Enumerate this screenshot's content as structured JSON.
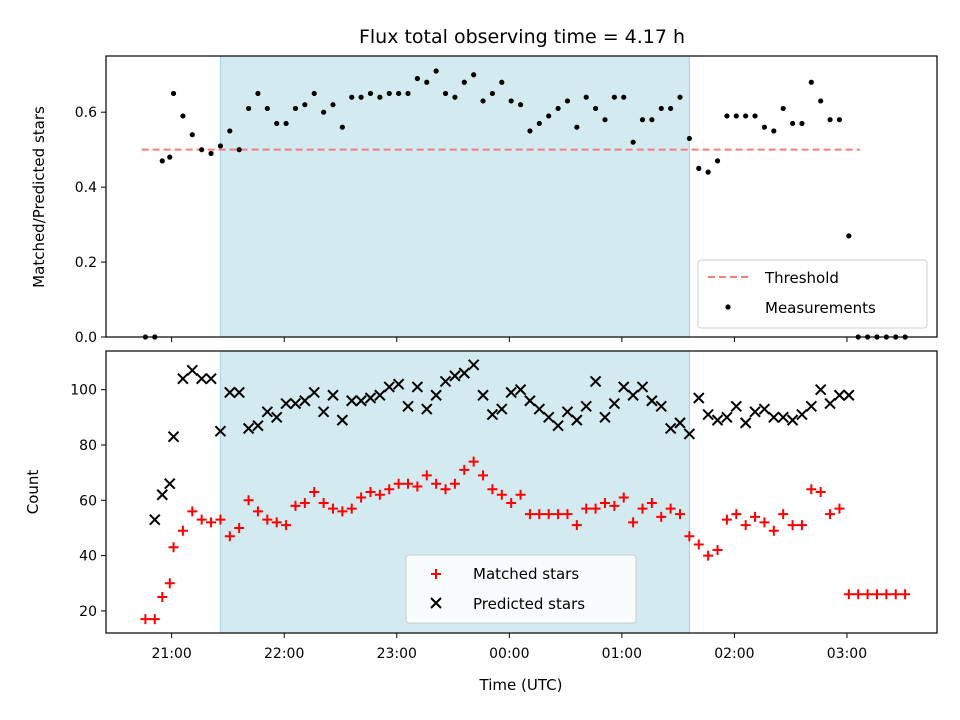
{
  "chart_data": [
    {
      "type": "scatter",
      "title": "Flux total observing time = 4.17 h",
      "xlabel": "",
      "ylabel": "Matched/Predicted stars",
      "xlim": [
        "20:25",
        "03:48"
      ],
      "ylim": [
        0,
        0.75
      ],
      "yticks": [
        0.0,
        0.2,
        0.4,
        0.6
      ],
      "ytick_labels": [
        "0.0",
        "0.2",
        "0.4",
        "0.6"
      ],
      "shaded_span": [
        "21:26",
        "01:36"
      ],
      "shaded_color": "#d3eaf1",
      "threshold": {
        "name": "Threshold",
        "y": 0.5,
        "x": [
          "20:44",
          "03:07"
        ],
        "color": "#f08080",
        "style": "dashed"
      },
      "legend": {
        "position": "lower right",
        "entries": [
          "Threshold",
          "Measurements"
        ]
      },
      "series": [
        {
          "name": "Measurements",
          "marker": "dot",
          "color": "#000000",
          "x": [
            "20:46",
            "20:51",
            "20:55",
            "20:59",
            "21:01",
            "21:06",
            "21:11",
            "21:16",
            "21:21",
            "21:26",
            "21:31",
            "21:36",
            "21:41",
            "21:46",
            "21:51",
            "21:56",
            "22:01",
            "22:06",
            "22:11",
            "22:16",
            "22:21",
            "22:26",
            "22:31",
            "22:36",
            "22:41",
            "22:46",
            "22:51",
            "22:56",
            "23:01",
            "23:06",
            "23:11",
            "23:16",
            "23:21",
            "23:26",
            "23:31",
            "23:36",
            "23:41",
            "23:46",
            "23:51",
            "23:56",
            "00:01",
            "00:06",
            "00:11",
            "00:16",
            "00:21",
            "00:26",
            "00:31",
            "00:36",
            "00:41",
            "00:46",
            "00:51",
            "00:56",
            "01:01",
            "01:06",
            "01:11",
            "01:16",
            "01:21",
            "01:26",
            "01:31",
            "01:36",
            "01:41",
            "01:46",
            "01:51",
            "01:56",
            "02:01",
            "02:06",
            "02:11",
            "02:16",
            "02:21",
            "02:26",
            "02:31",
            "02:36",
            "02:41",
            "02:46",
            "02:51",
            "02:56",
            "03:01",
            "03:06",
            "03:11",
            "03:16",
            "03:21",
            "03:26",
            "03:31"
          ],
          "y": [
            0.0,
            0.0,
            0.47,
            0.48,
            0.65,
            0.59,
            0.54,
            0.5,
            0.49,
            0.51,
            0.55,
            0.5,
            0.61,
            0.65,
            0.61,
            0.57,
            0.57,
            0.61,
            0.62,
            0.65,
            0.6,
            0.62,
            0.56,
            0.64,
            0.64,
            0.65,
            0.64,
            0.65,
            0.65,
            0.65,
            0.69,
            0.68,
            0.71,
            0.65,
            0.64,
            0.68,
            0.7,
            0.63,
            0.65,
            0.68,
            0.63,
            0.62,
            0.55,
            0.57,
            0.59,
            0.61,
            0.63,
            0.56,
            0.64,
            0.61,
            0.58,
            0.64,
            0.64,
            0.52,
            0.58,
            0.58,
            0.61,
            0.61,
            0.64,
            0.53,
            0.45,
            0.44,
            0.47,
            0.59,
            0.59,
            0.59,
            0.59,
            0.56,
            0.55,
            0.61,
            0.57,
            0.57,
            0.68,
            0.63,
            0.58,
            0.58,
            0.27,
            0.0,
            0.0,
            0.0,
            0.0,
            0.0,
            0.0
          ]
        }
      ]
    },
    {
      "type": "scatter",
      "title": "",
      "xlabel": "Time (UTC)",
      "ylabel": "Count",
      "xlim": [
        "20:25",
        "03:48"
      ],
      "ylim": [
        12,
        114
      ],
      "yticks": [
        20,
        40,
        60,
        80,
        100
      ],
      "ytick_labels": [
        "20",
        "40",
        "60",
        "80",
        "100"
      ],
      "xticks": [
        "21:00",
        "22:00",
        "23:00",
        "00:00",
        "01:00",
        "02:00",
        "03:00"
      ],
      "xtick_labels": [
        "21:00",
        "22:00",
        "23:00",
        "00:00",
        "01:00",
        "02:00",
        "03:00"
      ],
      "shaded_span": [
        "21:26",
        "01:36"
      ],
      "shaded_color": "#d3eaf1",
      "legend": {
        "position": "lower center",
        "entries": [
          "Matched stars",
          "Predicted stars"
        ]
      },
      "series": [
        {
          "name": "Matched stars",
          "marker": "plus",
          "color": "#ff0000",
          "x": [
            "20:46",
            "20:51",
            "20:55",
            "20:59",
            "21:01",
            "21:06",
            "21:11",
            "21:16",
            "21:21",
            "21:26",
            "21:31",
            "21:36",
            "21:41",
            "21:46",
            "21:51",
            "21:56",
            "22:01",
            "22:06",
            "22:11",
            "22:16",
            "22:21",
            "22:26",
            "22:31",
            "22:36",
            "22:41",
            "22:46",
            "22:51",
            "22:56",
            "23:01",
            "23:06",
            "23:11",
            "23:16",
            "23:21",
            "23:26",
            "23:31",
            "23:36",
            "23:41",
            "23:46",
            "23:51",
            "23:56",
            "00:01",
            "00:06",
            "00:11",
            "00:16",
            "00:21",
            "00:26",
            "00:31",
            "00:36",
            "00:41",
            "00:46",
            "00:51",
            "00:56",
            "01:01",
            "01:06",
            "01:11",
            "01:16",
            "01:21",
            "01:26",
            "01:31",
            "01:36",
            "01:41",
            "01:46",
            "01:51",
            "01:56",
            "02:01",
            "02:06",
            "02:11",
            "02:16",
            "02:21",
            "02:26",
            "02:31",
            "02:36",
            "02:41",
            "02:46",
            "02:51",
            "02:56",
            "03:01",
            "03:06",
            "03:11",
            "03:16",
            "03:21",
            "03:26",
            "03:31"
          ],
          "y": [
            17,
            17,
            25,
            30,
            43,
            49,
            56,
            53,
            52,
            53,
            47,
            50,
            60,
            56,
            53,
            52,
            51,
            58,
            59,
            63,
            59,
            57,
            56,
            57,
            61,
            63,
            62,
            64,
            66,
            66,
            65,
            69,
            66,
            64,
            66,
            71,
            74,
            69,
            64,
            62,
            59,
            62,
            55,
            55,
            55,
            55,
            55,
            51,
            57,
            57,
            59,
            58,
            61,
            52,
            57,
            59,
            54,
            57,
            55,
            47,
            44,
            40,
            42,
            53,
            55,
            51,
            54,
            52,
            49,
            55,
            51,
            51,
            64,
            63,
            55,
            57,
            26,
            26,
            26,
            26,
            26,
            26,
            26
          ]
        },
        {
          "name": "Predicted stars",
          "marker": "x",
          "color": "#000000",
          "x": [
            "20:51",
            "20:55",
            "20:59",
            "21:01",
            "21:06",
            "21:11",
            "21:16",
            "21:21",
            "21:26",
            "21:31",
            "21:36",
            "21:41",
            "21:46",
            "21:51",
            "21:56",
            "22:01",
            "22:06",
            "22:11",
            "22:16",
            "22:21",
            "22:26",
            "22:31",
            "22:36",
            "22:41",
            "22:46",
            "22:51",
            "22:56",
            "23:01",
            "23:06",
            "23:11",
            "23:16",
            "23:21",
            "23:26",
            "23:31",
            "23:36",
            "23:41",
            "23:46",
            "23:51",
            "23:56",
            "00:01",
            "00:06",
            "00:11",
            "00:16",
            "00:21",
            "00:26",
            "00:31",
            "00:36",
            "00:41",
            "00:46",
            "00:51",
            "00:56",
            "01:01",
            "01:06",
            "01:11",
            "01:16",
            "01:21",
            "01:26",
            "01:31",
            "01:36",
            "01:41",
            "01:46",
            "01:51",
            "01:56",
            "02:01",
            "02:06",
            "02:11",
            "02:16",
            "02:21",
            "02:26",
            "02:31",
            "02:36",
            "02:41",
            "02:46",
            "02:51",
            "02:56",
            "03:01"
          ],
          "y": [
            53,
            62,
            66,
            83,
            104,
            107,
            104,
            104,
            85,
            99,
            99,
            86,
            87,
            92,
            90,
            95,
            95,
            96,
            99,
            92,
            98,
            89,
            96,
            96,
            97,
            98,
            101,
            102,
            94,
            101,
            93,
            98,
            103,
            105,
            106,
            109,
            98,
            91,
            93,
            99,
            100,
            96,
            93,
            90,
            87,
            92,
            89,
            94,
            103,
            90,
            95,
            101,
            98,
            101,
            96,
            94,
            86,
            88,
            84,
            97,
            91,
            89,
            90,
            94,
            88,
            92,
            93,
            90,
            90,
            89,
            91,
            94,
            100,
            95,
            98,
            98
          ]
        }
      ]
    }
  ]
}
